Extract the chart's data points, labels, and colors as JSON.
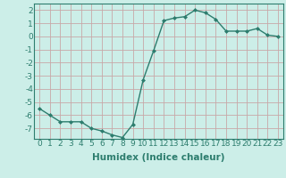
{
  "x": [
    0,
    1,
    2,
    3,
    4,
    5,
    6,
    7,
    8,
    9,
    10,
    11,
    12,
    13,
    14,
    15,
    16,
    17,
    18,
    19,
    20,
    21,
    22,
    23
  ],
  "y": [
    -5.5,
    -6.0,
    -6.5,
    -6.5,
    -6.5,
    -7.0,
    -7.2,
    -7.5,
    -7.7,
    -6.7,
    -3.3,
    -1.1,
    1.2,
    1.4,
    1.5,
    2.0,
    1.8,
    1.3,
    0.4,
    0.4,
    0.4,
    0.6,
    0.1,
    0.0
  ],
  "line_color": "#2d7d6e",
  "marker": "D",
  "marker_size": 2.0,
  "bg_color": "#cceee8",
  "grid_color": "#c8a8a8",
  "xlabel": "Humidex (Indice chaleur)",
  "xlim": [
    -0.5,
    23.5
  ],
  "ylim": [
    -7.8,
    2.5
  ],
  "yticks": [
    -7,
    -6,
    -5,
    -4,
    -3,
    -2,
    -1,
    0,
    1,
    2
  ],
  "xticks": [
    0,
    1,
    2,
    3,
    4,
    5,
    6,
    7,
    8,
    9,
    10,
    11,
    12,
    13,
    14,
    15,
    16,
    17,
    18,
    19,
    20,
    21,
    22,
    23
  ],
  "xtick_labels": [
    "0",
    "1",
    "2",
    "3",
    "4",
    "5",
    "6",
    "7",
    "8",
    "9",
    "10",
    "11",
    "12",
    "13",
    "14",
    "15",
    "16",
    "17",
    "18",
    "19",
    "20",
    "21",
    "22",
    "23"
  ],
  "font_size": 6.5,
  "xlabel_fontsize": 7.5,
  "tick_color": "#2d7d6e",
  "spine_color": "#2d7d6e"
}
